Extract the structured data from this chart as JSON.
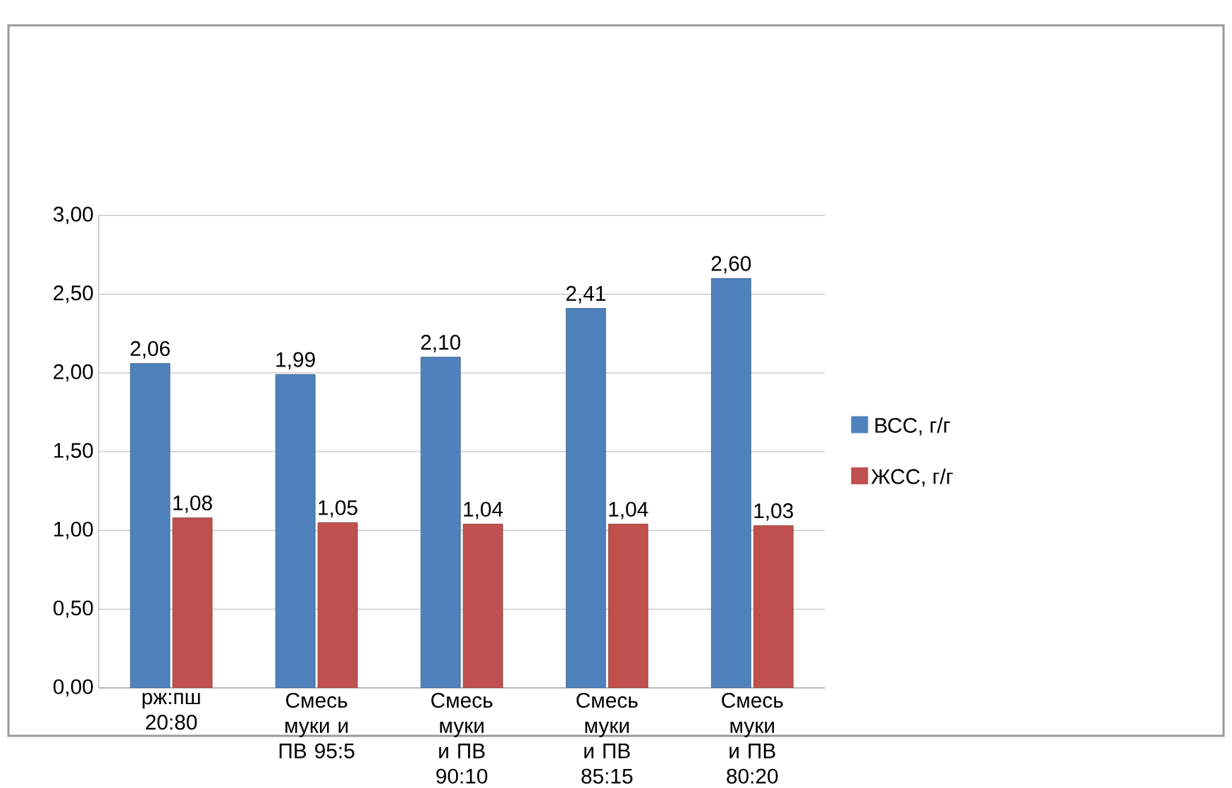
{
  "chart_data": {
    "type": "bar",
    "categories": [
      "рж:пш 20:80",
      "Смесь муки и ПВ 95:5",
      "Смесь муки и ПВ 90:10",
      "Смесь муки и ПВ 85:15",
      "Смесь муки и ПВ 80:20"
    ],
    "series": [
      {
        "name": "ВСС, г/г",
        "color": "#4f81bd",
        "values": [
          2.06,
          1.99,
          2.1,
          2.41,
          2.6
        ],
        "value_labels": [
          "2,06",
          "1,99",
          "2,10",
          "2,41",
          "2,60"
        ]
      },
      {
        "name": "ЖСС, г/г",
        "color": "#c0504d",
        "values": [
          1.08,
          1.05,
          1.04,
          1.04,
          1.03
        ],
        "value_labels": [
          "1,08",
          "1,05",
          "1,04",
          "1,04",
          "1,03"
        ]
      }
    ],
    "ylim": [
      0,
      3
    ],
    "yticks": [
      {
        "value": 0,
        "label": "0,00"
      },
      {
        "value": 0.5,
        "label": "0,50"
      },
      {
        "value": 1,
        "label": "1,00"
      },
      {
        "value": 1.5,
        "label": "1,50"
      },
      {
        "value": 2,
        "label": "2,00"
      },
      {
        "value": 2.5,
        "label": "2,50"
      },
      {
        "value": 3,
        "label": "3,00"
      }
    ],
    "grid": "y",
    "legend": "right"
  }
}
